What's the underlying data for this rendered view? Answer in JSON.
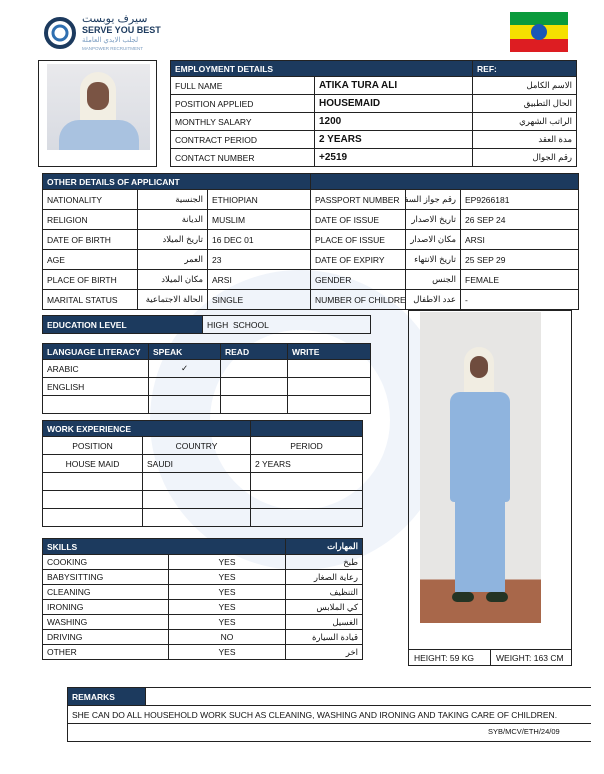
{
  "logo": {
    "arabic": "سيرف يوبست",
    "name": "SERVE YOU BEST",
    "arabic_sub": "لجلب الايدي العاملة",
    "sub": "MANPOWER RECRUITMENT"
  },
  "flag": "ethiopia-flag",
  "colors": {
    "header": "#1c3a5e"
  },
  "employment": {
    "title": "EMPLOYMENT DETAILS",
    "ref": "REF:",
    "rows": [
      {
        "label": "FULL NAME",
        "value": "ATIKA TURA ALI",
        "ar": "الاسم الكامل"
      },
      {
        "label": "POSITION APPLIED",
        "value": "HOUSEMAID",
        "ar": "الحال التطبيق"
      },
      {
        "label": "MONTHLY SALARY",
        "value": "1200",
        "ar": "الراتب الشهري"
      },
      {
        "label": "CONTRACT PERIOD",
        "value": "2 YEARS",
        "ar": "مدة العقد"
      },
      {
        "label": "CONTACT NUMBER",
        "value": "+2519",
        "ar": "رقم الجوال"
      }
    ]
  },
  "details": {
    "title": "OTHER DETAILS OF APPLICANT",
    "rows": [
      {
        "l1": "NATIONALITY",
        "a1": "الجنسية",
        "v1": "ETHIOPIAN",
        "l2": "PASSPORT NUMBER",
        "a2": "رقم جواز السفر",
        "v2": "EP9266181"
      },
      {
        "l1": "RELIGION",
        "a1": "الديانة",
        "v1": "MUSLIM",
        "l2": "DATE OF ISSUE",
        "a2": "تاريخ الاصدار",
        "v2": "26 SEP 24"
      },
      {
        "l1": "DATE OF BIRTH",
        "a1": "تاريخ الميلاد",
        "v1": "16 DEC 01",
        "l2": "PLACE OF ISSUE",
        "a2": "مكان الاصدار",
        "v2": "ARSI"
      },
      {
        "l1": "AGE",
        "a1": "العمر",
        "v1": "23",
        "l2": "DATE OF EXPIRY",
        "a2": "تاريخ الانتهاء",
        "v2": "25 SEP 29"
      },
      {
        "l1": "PLACE OF BIRTH",
        "a1": "مكان الميلاد",
        "v1": "ARSI",
        "l2": "GENDER",
        "a2": "الجنس",
        "v2": "FEMALE"
      },
      {
        "l1": "MARITAL STATUS",
        "a1": "الحالة الاجتماعية",
        "v1": "SINGLE",
        "l2": "NUMBER OF CHILDREN",
        "a2": "عدد الاطفال",
        "v2": "-"
      }
    ]
  },
  "education": {
    "label": "EDUCATION LEVEL",
    "value": "HIGH  SCHOOL"
  },
  "language": {
    "headers": [
      "LANGUAGE LITERACY",
      "SPEAK",
      "READ",
      "WRITE"
    ],
    "rows": [
      [
        "ARABIC",
        "✓",
        "",
        ""
      ],
      [
        "ENGLISH",
        "",
        "",
        ""
      ],
      [
        "",
        "",
        "",
        ""
      ]
    ]
  },
  "work": {
    "title": "WORK EXPERIENCE",
    "headers": [
      "POSITION",
      "COUNTRY",
      "PERIOD"
    ],
    "rows": [
      [
        "HOUSE MAID",
        "SAUDI",
        "2 YEARS"
      ],
      [
        "",
        "",
        ""
      ],
      [
        "",
        "",
        ""
      ],
      [
        "",
        "",
        ""
      ]
    ]
  },
  "skills": {
    "title": "SKILLS",
    "title_ar": "المهارات",
    "rows": [
      [
        "COOKING",
        "YES",
        "طبخ"
      ],
      [
        "BABYSITTING",
        "YES",
        "رعاية الصغار"
      ],
      [
        "CLEANING",
        "YES",
        "التنظيف"
      ],
      [
        "IRONING",
        "YES",
        "كي الملابس"
      ],
      [
        "WASHING",
        "YES",
        "الغسيل"
      ],
      [
        "DRIVING",
        "NO",
        "قيادة السيارة"
      ],
      [
        "OTHER",
        "YES",
        "اخر"
      ]
    ]
  },
  "body": {
    "height": "HEIGHT: 59 KG",
    "weight": "WEIGHT: 163 CM"
  },
  "remarks": {
    "title": "REMARKS",
    "text": "SHE CAN DO ALL HOUSEHOLD WORK SUCH AS CLEANING, WASHING AND IRONING AND TAKING CARE OF CHILDREN."
  },
  "code": "SYB/MCV/ETH/24/09"
}
